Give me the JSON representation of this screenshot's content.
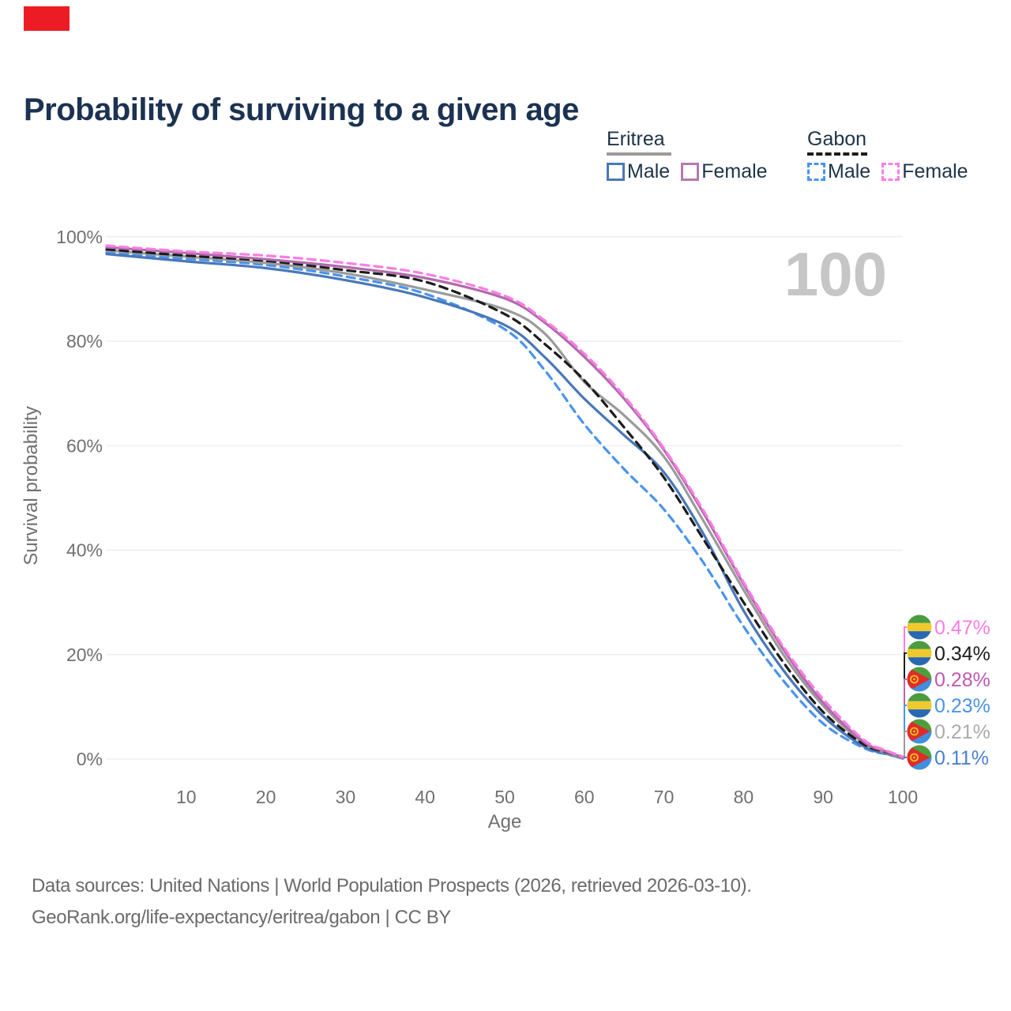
{
  "corner_marker": {
    "color": "#ed1c24"
  },
  "title": "Probability of surviving to a given age",
  "watermark": "100",
  "legend": {
    "groups": [
      {
        "country": "Eritrea",
        "line_style": "solid",
        "underline_color": "#9b9b9b",
        "items": [
          {
            "label": "Male",
            "color": "#4a77b9"
          },
          {
            "label": "Female",
            "color": "#b878b0"
          }
        ]
      },
      {
        "country": "Gabon",
        "line_style": "dashed",
        "underline_color": "#1c1c1c",
        "items": [
          {
            "label": "Male",
            "color": "#4a93ee"
          },
          {
            "label": "Female",
            "color": "#fb7de4"
          }
        ]
      }
    ]
  },
  "chart_data": {
    "type": "line",
    "title": "Probability of surviving to a given age",
    "xlabel": "Age",
    "ylabel": "Survival probability",
    "xlim": [
      0,
      100
    ],
    "ylim": [
      0,
      100
    ],
    "grid": "horizontal",
    "legend_position": "top-right",
    "x_ticks": [
      10,
      20,
      30,
      40,
      50,
      60,
      70,
      80,
      90,
      100
    ],
    "y_ticks": [
      {
        "value": 100,
        "label": "100%"
      },
      {
        "value": 80,
        "label": "80%"
      },
      {
        "value": 60,
        "label": "60%"
      },
      {
        "value": 40,
        "label": "40%"
      },
      {
        "value": 20,
        "label": "20%"
      },
      {
        "value": 0,
        "label": "0%"
      }
    ],
    "x": [
      0,
      10,
      20,
      30,
      40,
      50,
      55,
      60,
      65,
      70,
      75,
      80,
      85,
      90,
      95,
      98,
      100
    ],
    "series": [
      {
        "name": "Gabon Male",
        "country": "Gabon",
        "sex": "Male",
        "color": "#4a93ee",
        "dash": "dashed",
        "values": [
          97.0,
          95.8,
          94.6,
          92.4,
          89.1,
          82.3,
          74.5,
          64.1,
          55.5,
          47.8,
          37.5,
          25.4,
          15.0,
          6.8,
          2.2,
          0.9,
          0.23
        ]
      },
      {
        "name": "Eritrea Male",
        "country": "Eritrea",
        "sex": "Male",
        "color": "#4a77b9",
        "dash": "solid",
        "values": [
          96.7,
          95.3,
          94.0,
          91.7,
          88.4,
          83.1,
          77.0,
          69.0,
          62.0,
          54.9,
          43.0,
          28.4,
          17.0,
          8.2,
          2.5,
          1.0,
          0.11
        ]
      },
      {
        "name": "Eritrea Both sexes",
        "country": "Eritrea",
        "sex": "Both",
        "color": "#9b9b9b",
        "dash": "solid",
        "values": [
          97.4,
          96.2,
          95.0,
          93.0,
          89.9,
          86.1,
          81.5,
          72.2,
          65.8,
          57.9,
          45.5,
          32.4,
          20.0,
          10.2,
          3.1,
          1.2,
          0.21
        ]
      },
      {
        "name": "Gabon Both sexes",
        "country": "Gabon",
        "sex": "Both",
        "color": "#1c1c1c",
        "dash": "dashed",
        "values": [
          97.6,
          96.4,
          95.4,
          93.6,
          91.4,
          85.2,
          79.5,
          72.5,
          63.5,
          53.9,
          42.0,
          30.0,
          18.5,
          9.0,
          2.9,
          1.3,
          0.34
        ]
      },
      {
        "name": "Eritrea Female",
        "country": "Eritrea",
        "sex": "Female",
        "color": "#b26aaa",
        "dash": "solid",
        "values": [
          98.0,
          96.9,
          95.7,
          94.2,
          92.1,
          88.2,
          83.6,
          77.0,
          69.0,
          59.2,
          47.0,
          33.5,
          21.0,
          10.8,
          3.4,
          1.4,
          0.28
        ]
      },
      {
        "name": "Gabon Female",
        "country": "Gabon",
        "sex": "Female",
        "color": "#fb7de4",
        "dash": "dashed",
        "values": [
          98.3,
          97.2,
          96.4,
          95.0,
          92.9,
          88.7,
          84.0,
          77.6,
          69.5,
          59.5,
          47.5,
          33.9,
          21.5,
          11.5,
          3.8,
          1.6,
          0.47
        ]
      }
    ],
    "end_labels": [
      {
        "value": "0.47%",
        "series": 5,
        "flag": "gabon",
        "text_color": "#fb7de4"
      },
      {
        "value": "0.34%",
        "series": 3,
        "flag": "gabon",
        "text_color": "#1c1c1c"
      },
      {
        "value": "0.28%",
        "series": 4,
        "flag": "eritrea",
        "text_color": "#bf58b3"
      },
      {
        "value": "0.23%",
        "series": 0,
        "flag": "gabon",
        "text_color": "#4a93ee"
      },
      {
        "value": "0.21%",
        "series": 2,
        "flag": "eritrea",
        "text_color": "#ababab"
      },
      {
        "value": "0.11%",
        "series": 1,
        "flag": "eritrea",
        "text_color": "#4a7fd0"
      }
    ]
  },
  "footer": {
    "line1": "Data sources: United Nations | World Population Prospects (2026, retrieved 2026-03-10).",
    "line2": "GeoRank.org/life-expectancy/eritrea/gabon | CC BY"
  }
}
